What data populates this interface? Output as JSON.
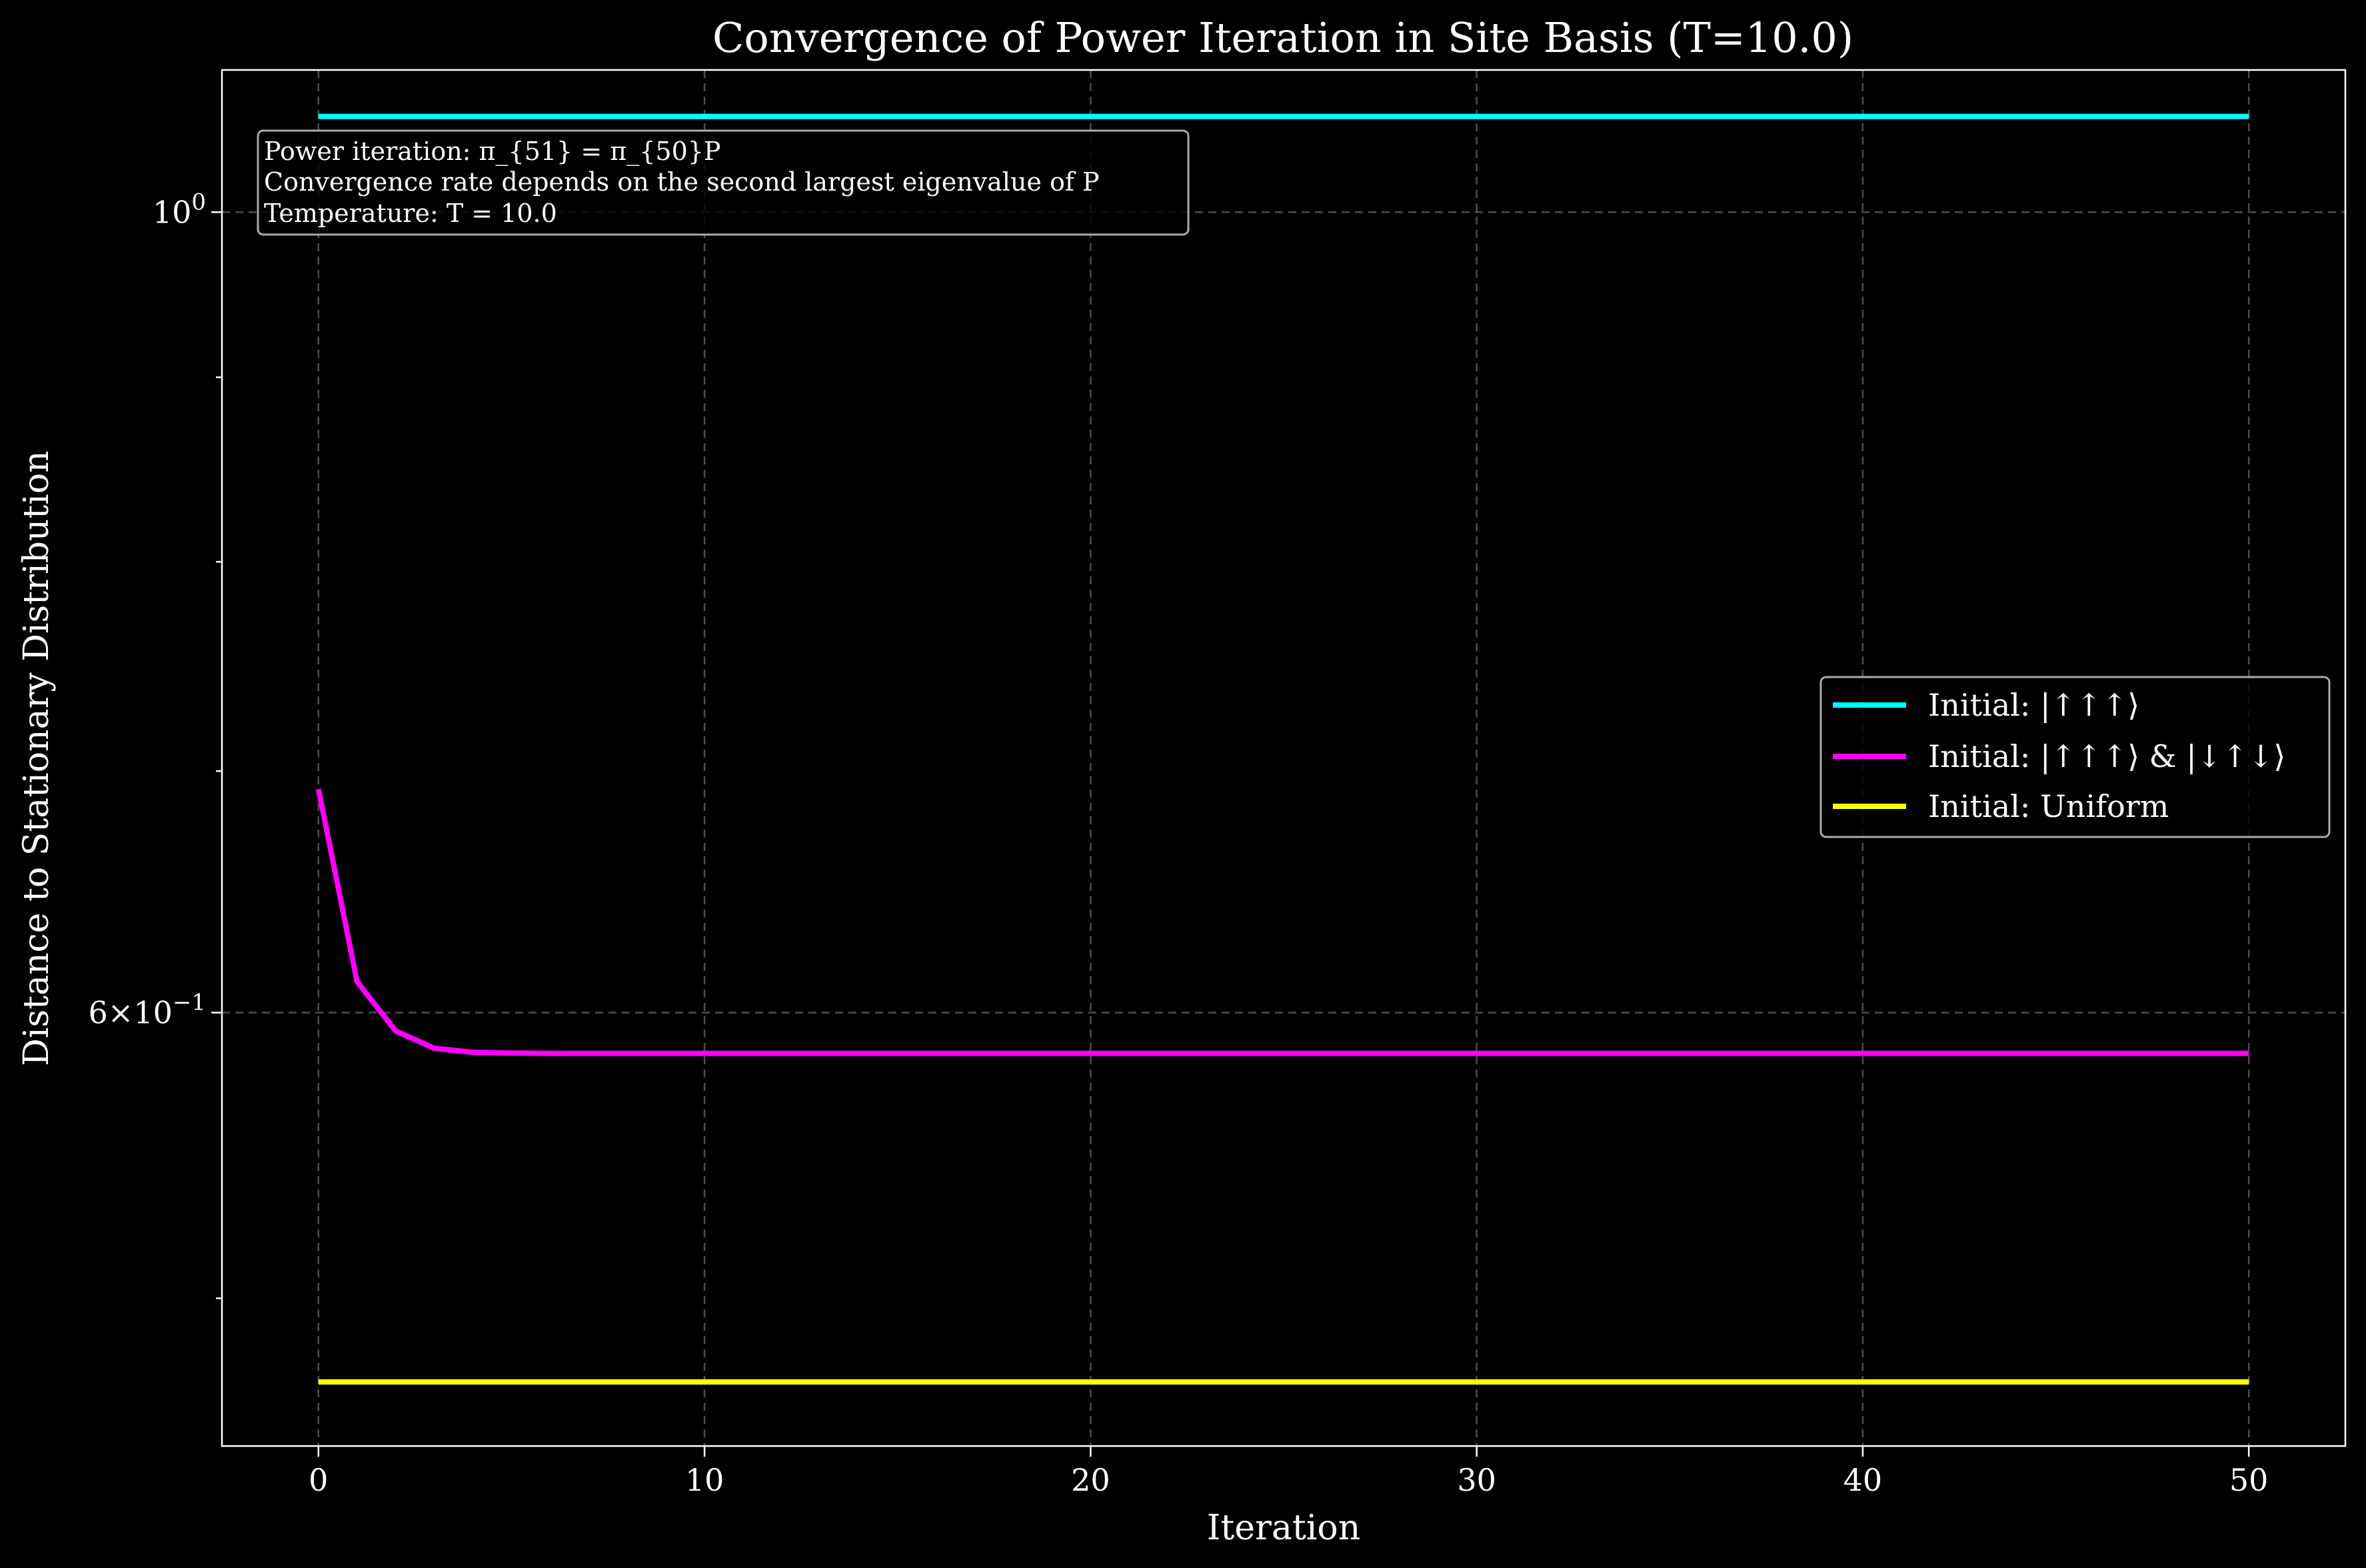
{
  "chart_data": {
    "type": "line",
    "title": "Convergence of Power Iteration in Site Basis (T=10.0)",
    "xlabel": "Iteration",
    "ylabel": "Distance to Stationary Distribution",
    "xlim": [
      -2.5,
      52.5
    ],
    "ylim": [
      0.455,
      1.095
    ],
    "yscale": "log",
    "x_ticks": [
      0,
      10,
      20,
      30,
      40,
      50
    ],
    "y_major_ticks": [
      {
        "value": 1.0,
        "label": "10^0"
      },
      {
        "value": 0.6,
        "label": "6×10^-1"
      }
    ],
    "y_minor_ticks": [
      0.5,
      0.7,
      0.8,
      0.9
    ],
    "grid": true,
    "legend_position": "center-right",
    "series": [
      {
        "name": "Initial: |↑↑↑⟩",
        "color": "#00ffff",
        "x": [
          0,
          50
        ],
        "y": [
          1.063,
          1.063
        ]
      },
      {
        "name": "Initial: |↑↑↑⟩ & |↓↑↓⟩",
        "color": "#ff00ff",
        "x": [
          0,
          1,
          2,
          3,
          4,
          5,
          6,
          7,
          8,
          9,
          10,
          15,
          20,
          25,
          30,
          35,
          40,
          45,
          50
        ],
        "y": [
          0.692,
          0.612,
          0.593,
          0.5865,
          0.585,
          0.5847,
          0.5846,
          0.5846,
          0.5846,
          0.5846,
          0.5846,
          0.5846,
          0.5846,
          0.5846,
          0.5846,
          0.5846,
          0.5846,
          0.5846,
          0.5846
        ]
      },
      {
        "name": "Initial: Uniform",
        "color": "#ffff00",
        "x": [
          0,
          50
        ],
        "y": [
          0.474,
          0.474
        ]
      }
    ],
    "annotation": [
      "Power iteration: π_{51} = π_{50}P",
      "Convergence rate depends on the second largest eigenvalue of P",
      "Temperature: T = 10.0"
    ]
  }
}
